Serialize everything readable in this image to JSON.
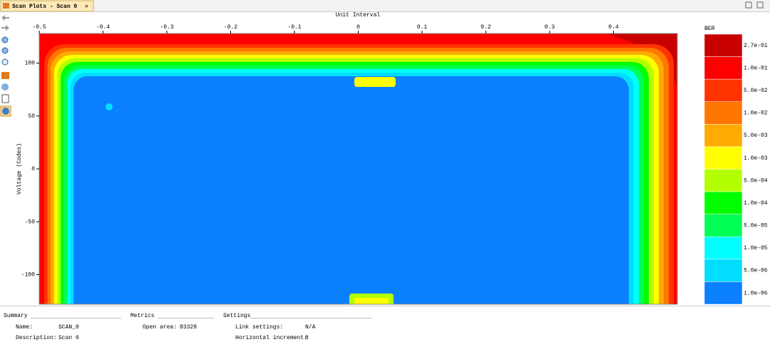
{
  "tab": {
    "title": "Scan Plots - Scan 0"
  },
  "chart_data": {
    "type": "contour",
    "x_label": "Unit Interval",
    "y_label": "Voltage (Codes)",
    "xlim": [
      -0.5,
      0.5
    ],
    "xticks": [
      -0.5,
      -0.4,
      -0.3,
      -0.2,
      -0.1,
      0,
      0.1,
      0.2,
      0.3,
      0.4
    ],
    "ylim": [
      -128,
      128
    ],
    "yticks": [
      -100,
      -50,
      0,
      50,
      100
    ],
    "legend": {
      "title": "BER",
      "levels": [
        {
          "label": "2.7e-01",
          "color": "#c80000"
        },
        {
          "label": "1.0e-01",
          "color": "#ff0000"
        },
        {
          "label": "5.0e-02",
          "color": "#ff3300"
        },
        {
          "label": "1.0e-02",
          "color": "#ff7700"
        },
        {
          "label": "5.0e-03",
          "color": "#ffaa00"
        },
        {
          "label": "1.0e-03",
          "color": "#ffff00"
        },
        {
          "label": "5.0e-04",
          "color": "#b3ff00"
        },
        {
          "label": "1.0e-04",
          "color": "#00ff00"
        },
        {
          "label": "5.0e-05",
          "color": "#00ff55"
        },
        {
          "label": "1.0e-05",
          "color": "#00ffff"
        },
        {
          "label": "5.0e-06",
          "color": "#00ddff"
        },
        {
          "label": "1.0e-06",
          "color": "#0a80ff"
        }
      ]
    }
  },
  "summary": {
    "title": "Summary",
    "rows": [
      [
        "Name:",
        "SCAN_0"
      ],
      [
        "Description:",
        "Scan 0"
      ]
    ]
  },
  "metrics": {
    "title": "Metrics",
    "rows": [
      [
        "Open area:",
        "83328"
      ]
    ]
  },
  "settings": {
    "title": "Settings",
    "rows": [
      [
        "Link settings:",
        "N/A"
      ],
      [
        "Horizontal increment:",
        "8"
      ]
    ]
  }
}
